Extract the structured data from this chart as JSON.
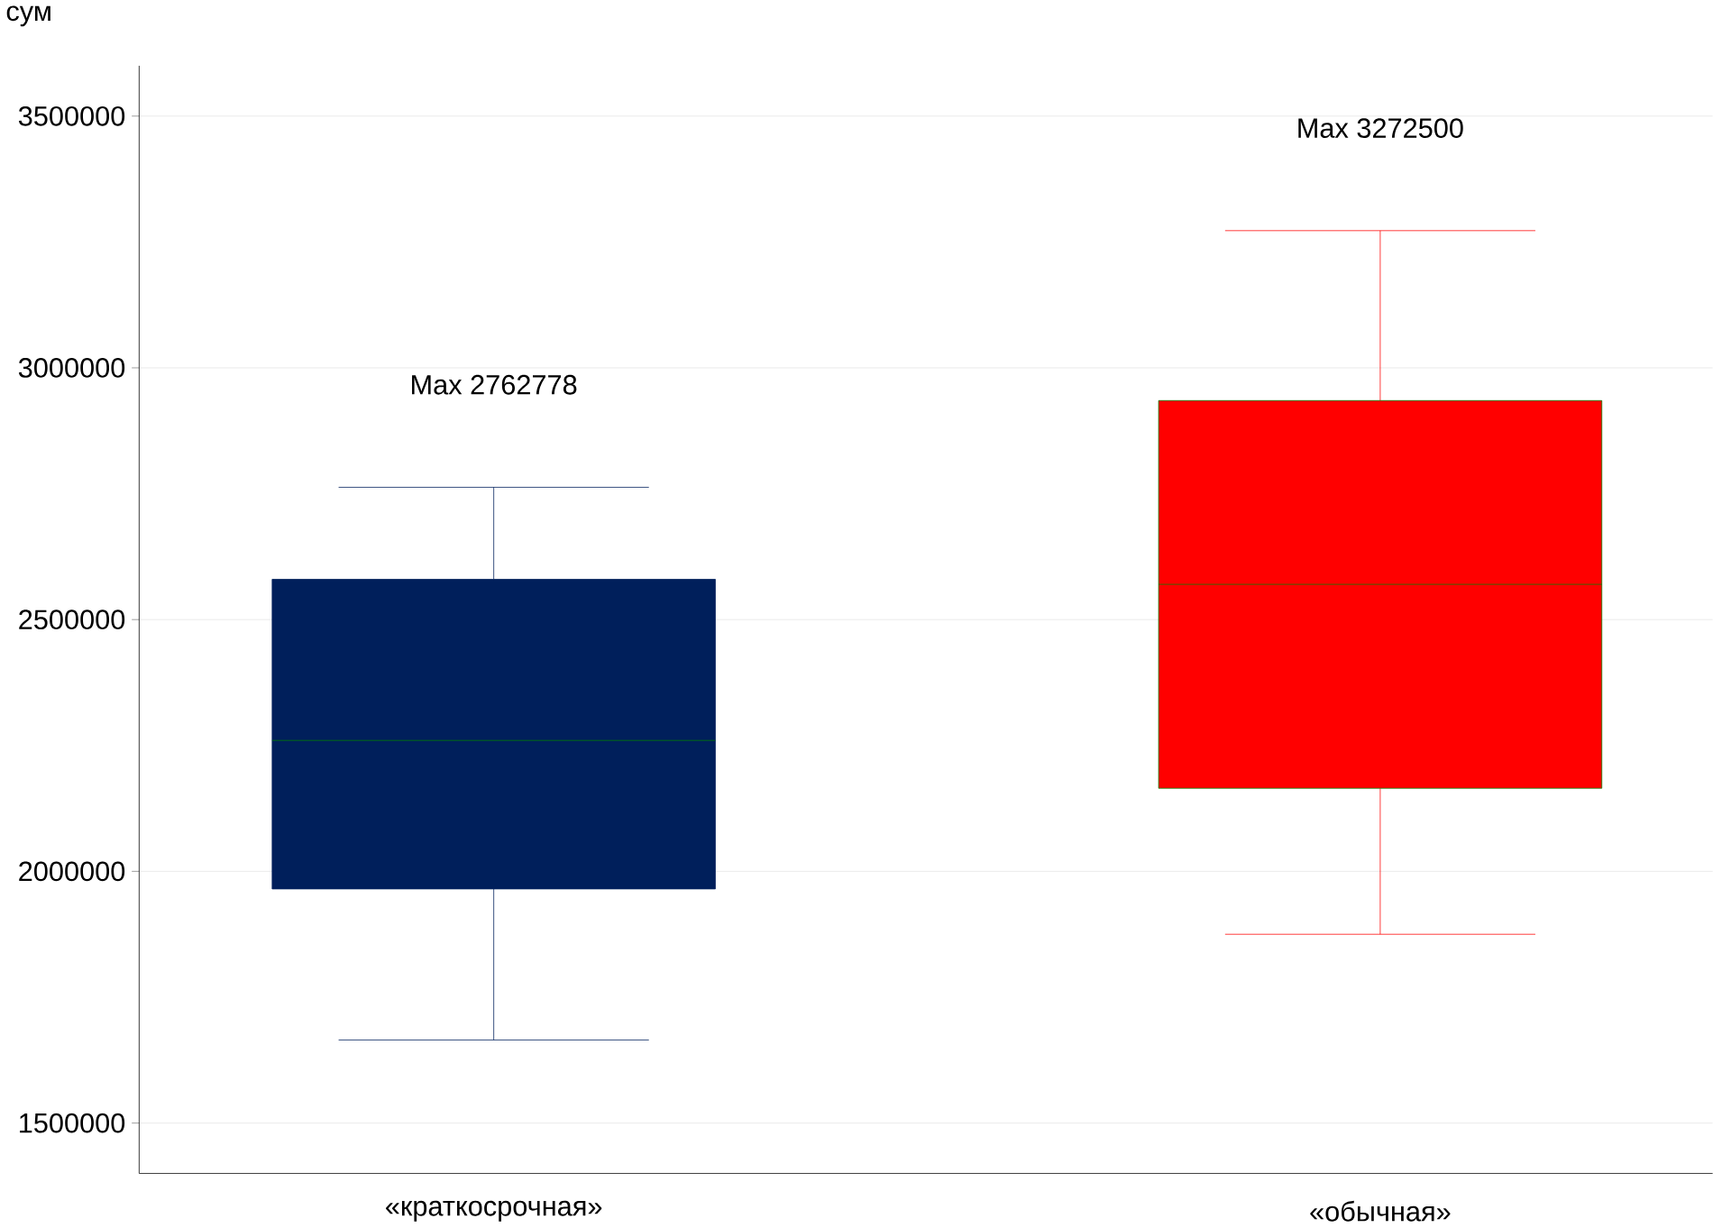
{
  "chart_data": {
    "type": "box",
    "ylabel": "сум",
    "categories": [
      "«краткосрочная»",
      "«обычная»"
    ],
    "boxes": [
      {
        "low": 1665000,
        "q1": 1965000,
        "median": 2260000,
        "q3": 2580000,
        "high": 2762778
      },
      {
        "low": 1875000,
        "q1": 2165000,
        "median": 2570000,
        "q3": 2935000,
        "high": 3272500
      }
    ],
    "colors": [
      "#001f5b",
      "#ff0000"
    ],
    "ylim": [
      1400000,
      3600000
    ],
    "yticks": [
      1500000,
      2000000,
      2500000,
      3000000,
      3500000
    ],
    "grid": "y",
    "annotations": [
      "Max 2762778",
      "Max 3272500"
    ]
  }
}
